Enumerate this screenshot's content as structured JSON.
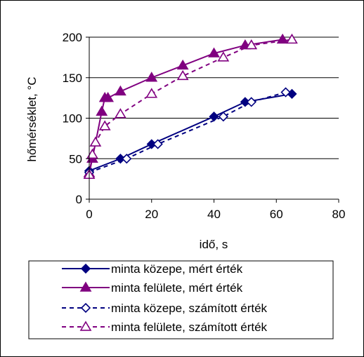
{
  "chart_data": {
    "type": "line",
    "title": "",
    "xlabel": "idő, s",
    "ylabel": "hőmérséklet, °C",
    "xlim": [
      0,
      80
    ],
    "ylim": [
      0,
      200
    ],
    "xticks": [
      0,
      20,
      40,
      60,
      80
    ],
    "yticks": [
      0,
      50,
      100,
      150,
      200
    ],
    "grid": "horizontal",
    "legend_position": "bottom",
    "series": [
      {
        "name": "minta közepe, mért érték",
        "color": "#000080",
        "line": "solid",
        "marker": "diamond-filled",
        "x": [
          0,
          10,
          20,
          40,
          50,
          65
        ],
        "y": [
          35,
          50,
          68,
          102,
          120,
          130
        ]
      },
      {
        "name": "minta felülete, mért érték",
        "color": "#800080",
        "line": "solid",
        "marker": "triangle-filled",
        "x": [
          0,
          1,
          4,
          5,
          6,
          10,
          20,
          30,
          40,
          50,
          62
        ],
        "y": [
          32,
          50,
          108,
          125,
          125,
          133,
          150,
          165,
          180,
          190,
          197
        ]
      },
      {
        "name": "minta közepe, számított érték",
        "color": "#000080",
        "line": "dashed",
        "marker": "diamond-open",
        "x": [
          0,
          12,
          22,
          43,
          52,
          63
        ],
        "y": [
          33,
          50,
          68,
          102,
          120,
          132
        ]
      },
      {
        "name": "minta felülete, számított érték",
        "color": "#800080",
        "line": "dashed",
        "marker": "triangle-open",
        "x": [
          0,
          1,
          2,
          5,
          10,
          20,
          30,
          43,
          52,
          65
        ],
        "y": [
          30,
          55,
          70,
          90,
          105,
          130,
          152,
          175,
          190,
          197
        ]
      }
    ]
  }
}
